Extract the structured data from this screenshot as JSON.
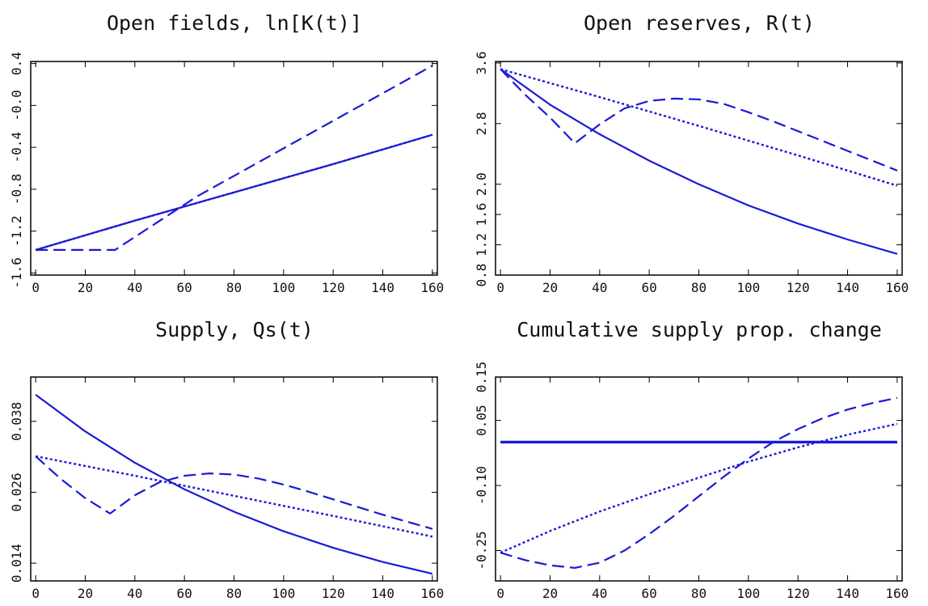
{
  "colors": {
    "series": "#1a1ad6",
    "axes": "#000000",
    "text": "#111111"
  },
  "chart_data": [
    {
      "type": "line",
      "title": "Open fields, ln[K(t)]",
      "xlabel": "",
      "ylabel": "",
      "xlim": [
        -2,
        162
      ],
      "ylim": [
        -1.62,
        0.42
      ],
      "xticks": [
        0,
        20,
        40,
        60,
        80,
        100,
        120,
        140,
        160
      ],
      "yticks": [
        -1.6,
        -1.2,
        -0.8,
        -0.4,
        0.0,
        0.4
      ],
      "ytick_labels": [
        "-1.6",
        "-1.2",
        "-0.8",
        "-0.4",
        "-0.0",
        "0.4"
      ],
      "grid": false,
      "series": [
        {
          "style": "solid",
          "x": [
            0,
            40,
            80,
            120,
            160
          ],
          "y": [
            -1.38,
            -1.1,
            -0.83,
            -0.56,
            -0.28
          ]
        },
        {
          "style": "dotted",
          "x": [
            0,
            40,
            80,
            120,
            160
          ],
          "y": [
            -1.38,
            -1.1,
            -0.83,
            -0.56,
            -0.28
          ]
        },
        {
          "style": "dashed",
          "x": [
            0,
            32,
            65,
            160
          ],
          "y": [
            -1.38,
            -1.38,
            -0.87,
            0.38
          ]
        }
      ]
    },
    {
      "type": "line",
      "title": "Open reserves, R(t)",
      "xlabel": "",
      "ylabel": "",
      "xlim": [
        -2,
        162
      ],
      "ylim": [
        0.8,
        3.62
      ],
      "xticks": [
        0,
        20,
        40,
        60,
        80,
        100,
        120,
        140,
        160
      ],
      "yticks": [
        0.8,
        1.2,
        1.6,
        2.0,
        2.8,
        3.6
      ],
      "ytick_labels": [
        "0.8",
        "1.2",
        "1.6",
        "2.0",
        "2.8",
        "3.6"
      ],
      "grid": false,
      "series": [
        {
          "style": "solid",
          "x": [
            0,
            20,
            40,
            60,
            80,
            100,
            120,
            140,
            160
          ],
          "y": [
            3.52,
            3.05,
            2.66,
            2.31,
            2.0,
            1.72,
            1.48,
            1.27,
            1.08
          ]
        },
        {
          "style": "dotted",
          "x": [
            0,
            40,
            80,
            120,
            160
          ],
          "y": [
            3.52,
            3.15,
            2.77,
            2.38,
            1.98
          ]
        },
        {
          "style": "dashed",
          "x": [
            0,
            10,
            20,
            30,
            40,
            50,
            60,
            70,
            80,
            90,
            100,
            110,
            120,
            130,
            140,
            150,
            160
          ],
          "y": [
            3.52,
            3.18,
            2.88,
            2.54,
            2.79,
            3.0,
            3.1,
            3.13,
            3.12,
            3.06,
            2.95,
            2.83,
            2.7,
            2.57,
            2.44,
            2.31,
            2.18
          ]
        }
      ]
    },
    {
      "type": "line",
      "title": "Supply, Qs(t)",
      "xlabel": "",
      "ylabel": "",
      "xlim": [
        -2,
        162
      ],
      "ylim": [
        0.011,
        0.0455
      ],
      "xticks": [
        0,
        20,
        40,
        60,
        80,
        100,
        120,
        140,
        160
      ],
      "yticks": [
        0.014,
        0.026,
        0.038
      ],
      "ytick_labels": [
        "0.014",
        "0.026",
        "0.038"
      ],
      "grid": false,
      "series": [
        {
          "style": "solid",
          "x": [
            0,
            20,
            40,
            60,
            80,
            100,
            120,
            140,
            160
          ],
          "y": [
            0.0425,
            0.0363,
            0.031,
            0.0265,
            0.0227,
            0.0194,
            0.0166,
            0.0142,
            0.0122
          ]
        },
        {
          "style": "dotted",
          "x": [
            0,
            40,
            80,
            120,
            160
          ],
          "y": [
            0.0321,
            0.0288,
            0.0254,
            0.022,
            0.0185
          ]
        },
        {
          "style": "dashed",
          "x": [
            0,
            10,
            20,
            30,
            40,
            50,
            60,
            70,
            80,
            90,
            100,
            110,
            120,
            130,
            140,
            150,
            160
          ],
          "y": [
            0.0321,
            0.0283,
            0.025,
            0.0224,
            0.0255,
            0.0277,
            0.0288,
            0.0292,
            0.029,
            0.0283,
            0.0273,
            0.0261,
            0.0248,
            0.0235,
            0.0222,
            0.021,
            0.0198
          ]
        }
      ]
    },
    {
      "type": "line",
      "title": "Cumulative supply prop. change",
      "xlabel": "",
      "ylabel": "",
      "xlim": [
        -2,
        162
      ],
      "ylim": [
        -0.32,
        0.15
      ],
      "xticks": [
        0,
        20,
        40,
        60,
        80,
        100,
        120,
        140,
        160
      ],
      "yticks": [
        -0.25,
        -0.1,
        0.05,
        0.15
      ],
      "ytick_labels": [
        "-0.25",
        "-0.10",
        "0.05",
        "0.15"
      ],
      "grid": false,
      "series": [
        {
          "style": "solid",
          "x": [
            0,
            160
          ],
          "y": [
            0.0,
            0.0
          ]
        },
        {
          "style": "dotted",
          "x": [
            0,
            20,
            40,
            60,
            80,
            100,
            120,
            140,
            160
          ],
          "y": [
            -0.255,
            -0.205,
            -0.16,
            -0.12,
            -0.082,
            -0.045,
            -0.012,
            0.017,
            0.042
          ]
        },
        {
          "style": "dashed",
          "x": [
            0,
            10,
            20,
            30,
            40,
            50,
            60,
            70,
            80,
            90,
            100,
            110,
            120,
            130,
            140,
            150,
            160
          ],
          "y": [
            -0.255,
            -0.272,
            -0.284,
            -0.29,
            -0.278,
            -0.25,
            -0.212,
            -0.17,
            -0.125,
            -0.08,
            -0.038,
            0.0,
            0.03,
            0.055,
            0.075,
            0.09,
            0.102
          ]
        }
      ]
    }
  ]
}
